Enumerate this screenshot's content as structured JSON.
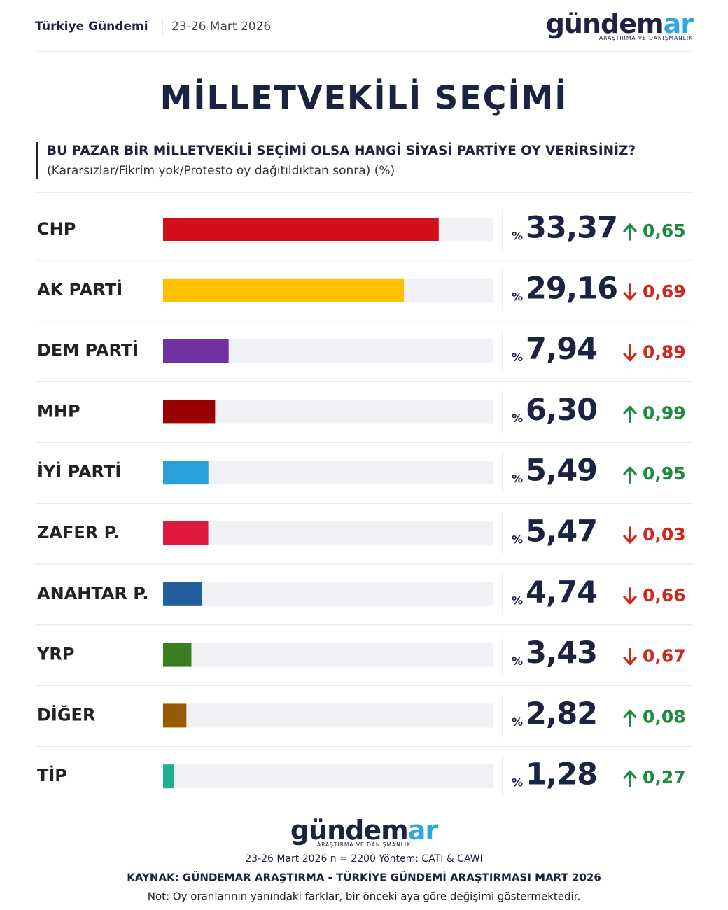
{
  "header": {
    "section": "Türkiye Gündemi",
    "date": "23-26 Mart 2026",
    "logo": {
      "main": "gündem",
      "accent": "ar",
      "tagline": "ARAŞTIRMA VE DANIŞMANLIK"
    }
  },
  "chart_data": {
    "type": "bar",
    "title": "MİLLETVEKİLİ SEÇİMİ",
    "question": "BU PAZAR BİR MİLLETVEKİLİ SEÇİMİ OLSA HANGİ SİYASİ PARTİYE OY VERİRSİNİZ?",
    "subtitle": "(Kararsızlar/Fikrim yok/Protesto oy dağıtıldıktan sonra) (%)",
    "categories": [
      "CHP",
      "AK PARTİ",
      "DEM PARTİ",
      "MHP",
      "İYİ PARTİ",
      "ZAFER P.",
      "ANAHTAR P.",
      "YRP",
      "DİĞER",
      "TİP"
    ],
    "values": [
      33.37,
      29.16,
      7.94,
      6.3,
      5.49,
      5.47,
      4.74,
      3.43,
      2.82,
      1.28
    ],
    "value_labels": [
      "33,37",
      "29,16",
      "7,94",
      "6,30",
      "5,49",
      "5,47",
      "4,74",
      "3,43",
      "2,82",
      "1,28"
    ],
    "value_prefix": "%",
    "colors": [
      "#d20f1a",
      "#ffc000",
      "#7030a0",
      "#990000",
      "#2a9fd8",
      "#e0193f",
      "#235f9e",
      "#3a7d22",
      "#975a00",
      "#20b195"
    ],
    "changes": [
      0.65,
      -0.69,
      -0.89,
      0.99,
      0.95,
      -0.03,
      -0.66,
      -0.67,
      0.08,
      0.27
    ],
    "change_labels": [
      "0,65",
      "0,69",
      "0,89",
      "0,99",
      "0,95",
      "0,03",
      "0,66",
      "0,67",
      "0,08",
      "0,27"
    ],
    "up_color": "#1e8a3e",
    "down_color": "#d0261c",
    "xlim": [
      0,
      40
    ]
  },
  "footer": {
    "logo": {
      "main": "gündem",
      "accent": "ar",
      "tagline": "ARAŞTIRMA VE DANIŞMANLIK"
    },
    "method": "23-26 Mart 2026 n = 2200 Yöntem: CATI & CAWI",
    "source": "KAYNAK: GÜNDEMAR ARAŞTIRMA - TÜRKİYE GÜNDEMİ ARAŞTIRMASI MART 2026",
    "note": "Not: Oy oranlarının yanındaki farklar, bir önceki aya göre değişimi göstermektedir."
  }
}
